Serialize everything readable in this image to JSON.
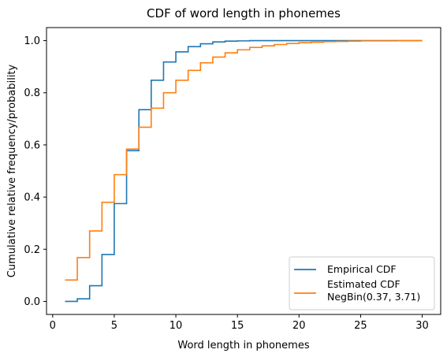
{
  "chart_data": {
    "type": "line",
    "title": "CDF of word length in phonemes",
    "xlabel": "Word length in phonemes",
    "ylabel": "Cumulative relative frequency/probability",
    "xlim": [
      -0.5,
      31.5
    ],
    "ylim": [
      -0.05,
      1.05
    ],
    "xticks": [
      0,
      5,
      10,
      15,
      20,
      25,
      30
    ],
    "yticks": [
      0.0,
      0.2,
      0.4,
      0.6,
      0.8,
      1.0
    ],
    "xtick_labels": [
      "0",
      "5",
      "10",
      "15",
      "20",
      "25",
      "30"
    ],
    "ytick_labels": [
      "0.0",
      "0.2",
      "0.4",
      "0.6",
      "0.8",
      "1.0"
    ],
    "grid": false,
    "legend_position": "bottom-right",
    "series": [
      {
        "name": "Empirical CDF",
        "color": "#1f77b4",
        "step": true,
        "x": [
          1,
          2,
          3,
          4,
          5,
          6,
          7,
          8,
          9,
          10,
          11,
          12,
          13,
          14,
          15,
          16,
          17,
          18,
          19,
          20,
          21,
          22,
          23,
          24,
          25,
          26,
          27,
          28,
          29,
          30
        ],
        "y": [
          0.0,
          0.01,
          0.06,
          0.18,
          0.375,
          0.578,
          0.735,
          0.848,
          0.918,
          0.957,
          0.977,
          0.988,
          0.995,
          0.998,
          0.999,
          1.0,
          1.0,
          1.0,
          1.0,
          1.0,
          1.0,
          1.0,
          1.0,
          1.0,
          1.0,
          1.0,
          1.0,
          1.0,
          1.0,
          1.0
        ]
      },
      {
        "name": "Estimated CDF\nNegBin(0.37, 3.71)",
        "color": "#ff7f0e",
        "step": true,
        "x": [
          1,
          2,
          3,
          4,
          5,
          6,
          7,
          8,
          9,
          10,
          11,
          12,
          13,
          14,
          15,
          16,
          17,
          18,
          19,
          20,
          21,
          22,
          23,
          24,
          25,
          26,
          27,
          28,
          29,
          30
        ],
        "y": [
          0.082,
          0.168,
          0.27,
          0.38,
          0.486,
          0.584,
          0.668,
          0.741,
          0.8,
          0.848,
          0.886,
          0.915,
          0.937,
          0.953,
          0.965,
          0.974,
          0.98,
          0.985,
          0.989,
          0.992,
          0.994,
          0.996,
          0.997,
          0.998,
          0.999,
          0.999,
          0.999,
          1.0,
          1.0,
          1.0
        ]
      }
    ]
  }
}
